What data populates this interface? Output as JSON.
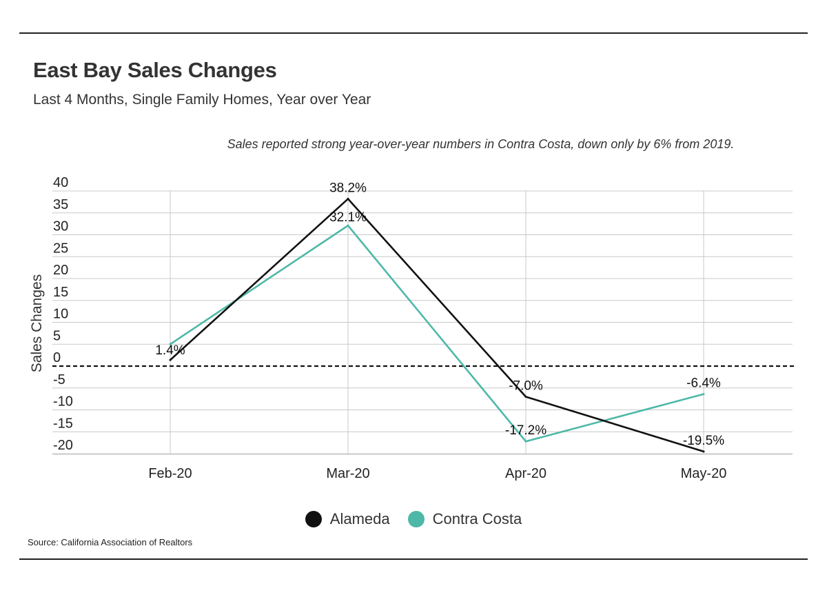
{
  "header": {
    "title": "East Bay Sales Changes",
    "subtitle": "Last 4 Months, Single Family Homes, Year over Year"
  },
  "note": "Sales reported strong year-over-year numbers in Contra Costa, down only by 6% from 2019.",
  "source": "Source:  California Association of Realtors",
  "chart_data": {
    "type": "line",
    "categories": [
      "Feb-20",
      "Mar-20",
      "Apr-20",
      "May-20"
    ],
    "ylabel": "Sales Changes",
    "xlabel": "",
    "ylim": [
      -20,
      40
    ],
    "yticks": [
      40,
      35,
      30,
      25,
      20,
      15,
      10,
      5,
      0,
      -5,
      -10,
      -15,
      -20
    ],
    "grid": true,
    "zero_line": "dashed",
    "legend_position": "bottom",
    "series": [
      {
        "name": "Alameda",
        "color": "#111111",
        "values": [
          1.4,
          38.2,
          -7.0,
          -19.5
        ],
        "labels": [
          "1.4%",
          "38.2%",
          "-7.0%",
          "-19.5%"
        ]
      },
      {
        "name": "Contra Costa",
        "color": "#4db8a8",
        "values": [
          5.0,
          32.1,
          -17.2,
          -6.4
        ],
        "labels": [
          "",
          "32.1%",
          "-17.2%",
          "-6.4%"
        ]
      }
    ]
  }
}
